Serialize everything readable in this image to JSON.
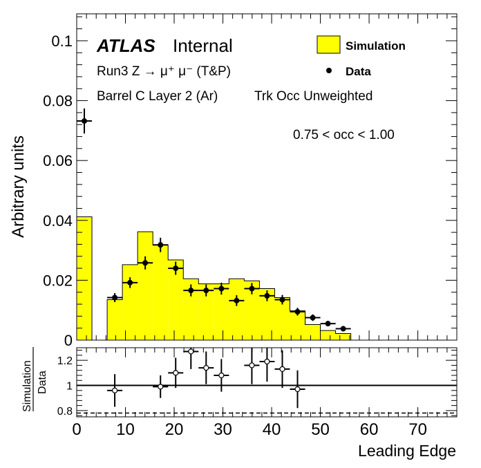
{
  "chart_data": [
    {
      "type": "histogram",
      "ylabel": "Arbitrary units",
      "xlabel": "",
      "xlim": [
        0,
        78
      ],
      "ylim": [
        0,
        0.109
      ],
      "yticks": [
        0,
        0.02,
        0.04,
        0.06,
        0.08,
        0.1
      ],
      "ytick_labels": [
        "0",
        "0.02",
        "0.04",
        "0.06",
        "0.08",
        "0.1"
      ],
      "grid": false,
      "annotations": {
        "atlas": "ATLAS",
        "internal": "Internal",
        "line1": "Run3 Z → μ⁺ μ⁻ (T&P)",
        "line2": "Barrel C Layer 2 (Ar)",
        "line2b": "Trk Occ Unweighted",
        "range": "0.75 < occ < 1.00"
      },
      "legend": {
        "placement": "top-right",
        "simulation": "Simulation",
        "data": "Data"
      },
      "series": [
        {
          "name": "Simulation",
          "kind": "histogram",
          "color": "#ffff00",
          "bins": [
            [
              0,
              3.125,
              0.0412
            ],
            [
              3.125,
              6.25,
              0.0
            ],
            [
              6.25,
              9.375,
              0.0135
            ],
            [
              9.375,
              12.5,
              0.0252
            ],
            [
              12.5,
              15.625,
              0.0362
            ],
            [
              15.625,
              18.75,
              0.0318
            ],
            [
              18.75,
              21.875,
              0.0268
            ],
            [
              21.875,
              25.0,
              0.0205
            ],
            [
              25.0,
              28.125,
              0.0188
            ],
            [
              28.125,
              31.25,
              0.0188
            ],
            [
              31.25,
              34.375,
              0.0205
            ],
            [
              34.375,
              37.5,
              0.0198
            ],
            [
              37.5,
              40.625,
              0.0172
            ],
            [
              40.625,
              43.75,
              0.0142
            ],
            [
              43.75,
              46.875,
              0.0098
            ],
            [
              46.875,
              50.0,
              0.0052
            ],
            [
              50.0,
              53.125,
              0.0032
            ],
            [
              53.125,
              56.25,
              0.0022
            ]
          ]
        },
        {
          "name": "Data",
          "kind": "points",
          "color": "#000000",
          "points": [
            [
              1.56,
              0.0732,
              0.0042
            ],
            [
              7.81,
              0.0142,
              0.0015
            ],
            [
              10.94,
              0.0192,
              0.0018
            ],
            [
              14.06,
              0.0258,
              0.0022
            ],
            [
              17.19,
              0.0318,
              0.0024
            ],
            [
              20.31,
              0.024,
              0.0022
            ],
            [
              23.44,
              0.0166,
              0.002
            ],
            [
              26.56,
              0.0166,
              0.002
            ],
            [
              29.69,
              0.0172,
              0.002
            ],
            [
              32.81,
              0.0132,
              0.0018
            ],
            [
              35.94,
              0.0172,
              0.0019
            ],
            [
              39.06,
              0.0148,
              0.0018
            ],
            [
              42.19,
              0.0135,
              0.0016
            ],
            [
              45.31,
              0.0095,
              0.0013
            ],
            [
              48.44,
              0.0075,
              0.0011
            ],
            [
              51.56,
              0.0055,
              0.0009
            ],
            [
              54.69,
              0.0038,
              0.0007
            ]
          ]
        }
      ]
    },
    {
      "type": "scatter",
      "ylabel_num": "Simulation",
      "ylabel_den": "Data",
      "xlabel": "Leading Edge",
      "xlim": [
        0,
        78
      ],
      "ylim": [
        0.75,
        1.3
      ],
      "yticks": [
        0.8,
        1.0,
        1.2
      ],
      "ytick_labels": [
        "0.8",
        "1",
        "1.2"
      ],
      "xticks": [
        0,
        10,
        20,
        30,
        40,
        50,
        60,
        70
      ],
      "xtick_labels": [
        "0",
        "10",
        "20",
        "30",
        "40",
        "50",
        "60",
        "70"
      ],
      "reference_lines": [
        1.0,
        0.78
      ],
      "series": [
        {
          "kind": "ratio-points",
          "points": [
            [
              7.81,
              0.96,
              0.13
            ],
            [
              17.19,
              0.99,
              0.09
            ],
            [
              20.31,
              1.1,
              0.12
            ],
            [
              23.44,
              1.27,
              0.14
            ],
            [
              26.56,
              1.14,
              0.13
            ],
            [
              29.69,
              1.08,
              0.13
            ],
            [
              35.94,
              1.16,
              0.15
            ],
            [
              39.06,
              1.19,
              0.16
            ],
            [
              42.19,
              1.13,
              0.15
            ],
            [
              45.31,
              0.97,
              0.15
            ]
          ]
        }
      ]
    }
  ]
}
